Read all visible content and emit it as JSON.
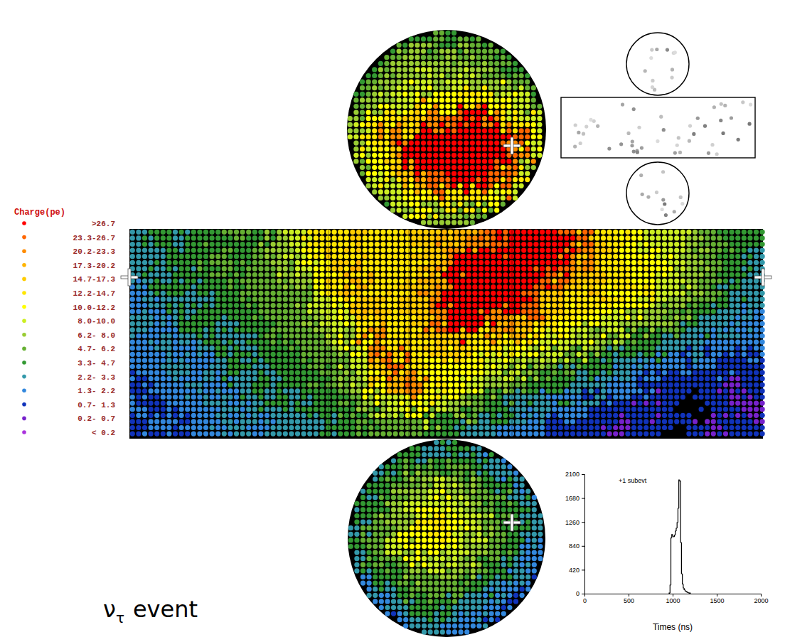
{
  "legend": {
    "title": "Charge(pe)",
    "items": [
      {
        "label": ">26.7",
        "low": 26.7,
        "high": null,
        "color": "#ff0000"
      },
      {
        "label": "23.3-26.7",
        "low": 23.3,
        "high": 26.7,
        "color": "#ff6600"
      },
      {
        "label": "20.2-23.3",
        "low": 20.2,
        "high": 23.3,
        "color": "#ff8c00"
      },
      {
        "label": "17.3-20.2",
        "low": 17.3,
        "high": 20.2,
        "color": "#ffb400"
      },
      {
        "label": "14.7-17.3",
        "low": 14.7,
        "high": 17.3,
        "color": "#ffcc00"
      },
      {
        "label": "12.2-14.7",
        "low": 12.2,
        "high": 14.7,
        "color": "#ffe600"
      },
      {
        "label": "10.0-12.2",
        "low": 10.0,
        "high": 12.2,
        "color": "#ffff00"
      },
      {
        "label": "8.0-10.0",
        "low": 8.0,
        "high": 10.0,
        "color": "#ccee22"
      },
      {
        "label": "6.2- 8.0",
        "low": 6.2,
        "high": 8.0,
        "color": "#99cc33"
      },
      {
        "label": "4.7- 6.2",
        "low": 4.7,
        "high": 6.2,
        "color": "#66b033"
      },
      {
        "label": "3.3- 4.7",
        "low": 3.3,
        "high": 4.7,
        "color": "#339933"
      },
      {
        "label": "2.2- 3.3",
        "low": 2.2,
        "high": 3.3,
        "color": "#3399aa"
      },
      {
        "label": "1.3- 2.2",
        "low": 1.3,
        "high": 2.2,
        "color": "#3388dd"
      },
      {
        "label": "0.7- 1.3",
        "low": 0.7,
        "high": 1.3,
        "color": "#1133bb"
      },
      {
        "label": "0.2- 0.7",
        "low": 0.2,
        "high": 0.7,
        "color": "#7722cc"
      },
      {
        "label": "< 0.2",
        "low": null,
        "high": 0.2,
        "color": "#aa33dd"
      }
    ]
  },
  "detector": {
    "top": [
      [
        2.7,
        4,
        5.5,
        4,
        5.5,
        4,
        5.5,
        4,
        2.7,
        2.7
      ],
      [
        4,
        4,
        5.5,
        7,
        5.5,
        7,
        5.5,
        5.5,
        4,
        2.7
      ],
      [
        4,
        5.5,
        7,
        9,
        7,
        9,
        7,
        7,
        5.5,
        4
      ],
      [
        5.5,
        7,
        9,
        11,
        11,
        11,
        13,
        11,
        9,
        5.5
      ],
      [
        7,
        11,
        13,
        16,
        21,
        25,
        30,
        21,
        13,
        9
      ],
      [
        9,
        13,
        21,
        30,
        30,
        30,
        30,
        30,
        25,
        11
      ],
      [
        7,
        11,
        16,
        30,
        30,
        30,
        30,
        30,
        21,
        9
      ],
      [
        5.5,
        9,
        13,
        18,
        25,
        30,
        30,
        25,
        13,
        7
      ],
      [
        4,
        7,
        9,
        11,
        13,
        13,
        13,
        11,
        9,
        5.5
      ],
      [
        2.7,
        4,
        5.5,
        7,
        7,
        7,
        5.5,
        5.5,
        4,
        2.7
      ]
    ],
    "barrel": [
      [
        2.7,
        4,
        2.7,
        4,
        4,
        5.5,
        4,
        7,
        9,
        13,
        13,
        16,
        13,
        13,
        16,
        16,
        18,
        21,
        25,
        30,
        30,
        30,
        25,
        16,
        13,
        11,
        9,
        9,
        7,
        5.5,
        4,
        4
      ],
      [
        2.7,
        2.7,
        4,
        4,
        5.5,
        4,
        5.5,
        7,
        9,
        11,
        16,
        13,
        13,
        13,
        13,
        16,
        21,
        30,
        30,
        30,
        30,
        30,
        21,
        16,
        13,
        11,
        11,
        9,
        7,
        5.5,
        4,
        2.7
      ],
      [
        2.7,
        4,
        2.7,
        4,
        4,
        5.5,
        5.5,
        5.5,
        7,
        11,
        13,
        18,
        13,
        13,
        16,
        18,
        30,
        30,
        30,
        30,
        30,
        25,
        18,
        16,
        13,
        13,
        11,
        9,
        7,
        5.5,
        4,
        2.7
      ],
      [
        1.8,
        2.7,
        4,
        2.7,
        4,
        4,
        5.5,
        5.5,
        5.5,
        9,
        11,
        16,
        16,
        13,
        16,
        21,
        30,
        30,
        30,
        30,
        25,
        16,
        13,
        13,
        11,
        11,
        9,
        7,
        5.5,
        4,
        2.7,
        2.7
      ],
      [
        2.7,
        1.8,
        2.7,
        4,
        2.7,
        4,
        4,
        5.5,
        5.5,
        7,
        9,
        13,
        18,
        13,
        16,
        25,
        30,
        30,
        21,
        18,
        16,
        13,
        11,
        11,
        9,
        7,
        7,
        5.5,
        4,
        2.7,
        2.7,
        1.8
      ],
      [
        1.8,
        2.7,
        1.8,
        2.7,
        4,
        2.7,
        4,
        4,
        5.5,
        5.5,
        7,
        11,
        21,
        13,
        13,
        16,
        16,
        13,
        13,
        11,
        11,
        9,
        9,
        7,
        5.5,
        4,
        4,
        2.7,
        2.7,
        1.8,
        1.8,
        1.8
      ],
      [
        1.8,
        1.8,
        2.7,
        1.8,
        2.7,
        4,
        2.7,
        4,
        4,
        5.5,
        5.5,
        9,
        16,
        25,
        13,
        11,
        11,
        11,
        9,
        9,
        7,
        5.5,
        5.5,
        4,
        2.7,
        2.7,
        1.8,
        1.8,
        1,
        1.8,
        1,
        1
      ],
      [
        1,
        1.8,
        1.8,
        2.7,
        1.8,
        2.7,
        4,
        2.7,
        4,
        4,
        5.5,
        7,
        11,
        18,
        21,
        13,
        11,
        9,
        7,
        5.5,
        4,
        4,
        2.7,
        2.7,
        1.8,
        1.8,
        1,
        1,
        1,
        1,
        0.5,
        1
      ],
      [
        1.8,
        1,
        1.8,
        1.8,
        2.7,
        1.8,
        2.7,
        4,
        2.7,
        4,
        4,
        5.5,
        7,
        9,
        11,
        9,
        7,
        5.5,
        4,
        2.7,
        2.7,
        1.8,
        1.8,
        1,
        1,
        1,
        0.5,
        1,
        null,
        1,
        1,
        0.5
      ],
      [
        1,
        1.8,
        1,
        1.8,
        1.8,
        2.7,
        1.8,
        2.7,
        2.7,
        2.7,
        4,
        4,
        5.5,
        5.5,
        5.5,
        4,
        4,
        2.7,
        2.7,
        1.8,
        1.8,
        1,
        1,
        1,
        0.5,
        1,
        1,
        null,
        1,
        0.5,
        1,
        1
      ]
    ],
    "bottom": [
      [
        2.7,
        1.8,
        2.7,
        4,
        2.7,
        4,
        2.7,
        1.8,
        1.8,
        1
      ],
      [
        1.8,
        2.7,
        4,
        5.5,
        4,
        5.5,
        4,
        2.7,
        1.8,
        1.8
      ],
      [
        2.7,
        4,
        5.5,
        7,
        9,
        7,
        5.5,
        4,
        2.7,
        1.8
      ],
      [
        4,
        4,
        7,
        9,
        11,
        9,
        7,
        5.5,
        4,
        2.7
      ],
      [
        2.7,
        5.5,
        7,
        11,
        13,
        11,
        9,
        5.5,
        4,
        2.7
      ],
      [
        4,
        5.5,
        9,
        11,
        11,
        9,
        7,
        5.5,
        4,
        1.8
      ],
      [
        2.7,
        4,
        5.5,
        7,
        9,
        7,
        5.5,
        4,
        2.7,
        1.8
      ],
      [
        1.8,
        2.7,
        4,
        5.5,
        5.5,
        5.5,
        4,
        2.7,
        1.8,
        1
      ],
      [
        1,
        1.8,
        2.7,
        4,
        4,
        2.7,
        2.7,
        1.8,
        1,
        null
      ],
      [
        1,
        1,
        1.8,
        2.7,
        2.7,
        1.8,
        1.8,
        1,
        1,
        1
      ]
    ]
  },
  "caption": {
    "symbol": "ν",
    "subscript": "τ",
    "text": "event"
  },
  "chart_data": {
    "type": "histogram",
    "annotation": "+1 subevt",
    "xlabel": "Times (ns)",
    "xlim": [
      0,
      2000
    ],
    "xticks": [
      0,
      500,
      1000,
      1500,
      2000
    ],
    "ylim": [
      0,
      2100
    ],
    "yticks": [
      0,
      420,
      840,
      1260,
      1680,
      2100
    ],
    "bins": [
      960,
      970,
      980,
      990,
      1000,
      1010,
      1020,
      1030,
      1040,
      1050,
      1060,
      1070,
      1080,
      1090,
      1100,
      1110,
      1120,
      1130,
      1140,
      1150,
      1160,
      1170,
      1180,
      1190,
      1200
    ],
    "counts": [
      10,
      150,
      980,
      1040,
      1010,
      1000,
      1030,
      1100,
      1150,
      1250,
      1500,
      2000,
      1980,
      900,
      350,
      170,
      100,
      70,
      50,
      40,
      30,
      20,
      15,
      10
    ],
    "color": "#000000"
  }
}
